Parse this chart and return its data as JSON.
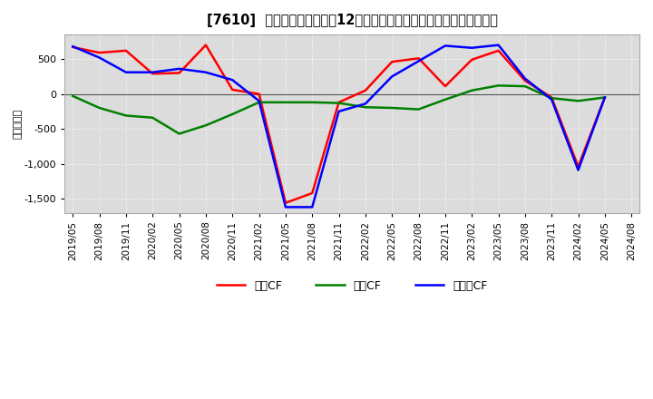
{
  "title": "[7610]  キャッシュフローの12か月移動合計の対前年同期増減額の推移",
  "ylabel": "（百万円）",
  "ylim": [
    -1700,
    850
  ],
  "yticks": [
    500,
    0,
    -500,
    -1000,
    -1500
  ],
  "legend_labels": [
    "営業CF",
    "投資CF",
    "フリーCF"
  ],
  "line_colors": [
    "#ff0000",
    "#008000",
    "#0000ff"
  ],
  "bg_color": "#dcdcdc",
  "fig_color": "#ffffff",
  "grid_color": "#ffffff",
  "dates": [
    "2019/05",
    "2019/08",
    "2019/11",
    "2020/02",
    "2020/05",
    "2020/08",
    "2020/11",
    "2021/02",
    "2021/05",
    "2021/08",
    "2021/11",
    "2022/02",
    "2022/05",
    "2022/08",
    "2022/11",
    "2023/02",
    "2023/05",
    "2023/08",
    "2023/11",
    "2024/02",
    "2024/05",
    "2024/08"
  ],
  "operating_cf": [
    670,
    590,
    620,
    290,
    300,
    700,
    60,
    0,
    -1560,
    -1420,
    -120,
    50,
    460,
    510,
    110,
    490,
    620,
    190,
    -50,
    -1040,
    -50,
    null
  ],
  "investing_cf": [
    -30,
    -200,
    -310,
    -340,
    -570,
    -450,
    -290,
    -120,
    -120,
    -120,
    -130,
    -190,
    -200,
    -220,
    -80,
    50,
    120,
    110,
    -60,
    -100,
    -50,
    null
  ],
  "free_cf": [
    680,
    520,
    310,
    310,
    360,
    310,
    200,
    -100,
    -1620,
    -1620,
    -250,
    -140,
    250,
    470,
    690,
    660,
    700,
    220,
    -80,
    -1090,
    -50,
    null
  ]
}
